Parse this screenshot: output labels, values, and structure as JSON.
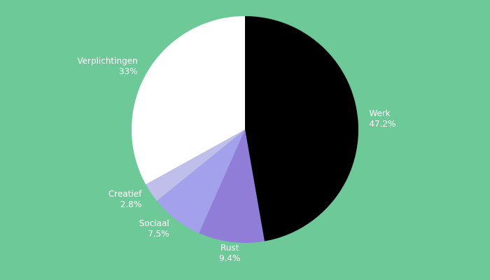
{
  "chart_data": {
    "type": "pie",
    "categories": [
      "Werk",
      "Rust",
      "Sociaal",
      "Creatief",
      "Verplichtingen"
    ],
    "values": [
      47.2,
      9.4,
      7.5,
      2.8,
      33
    ],
    "value_labels": [
      "47.2%",
      "9.4%",
      "7.5%",
      "2.8%",
      "33%"
    ],
    "colors": [
      "#000000",
      "#8f7dd7",
      "#a4a1ec",
      "#c0beeb",
      "#ffffff"
    ]
  }
}
